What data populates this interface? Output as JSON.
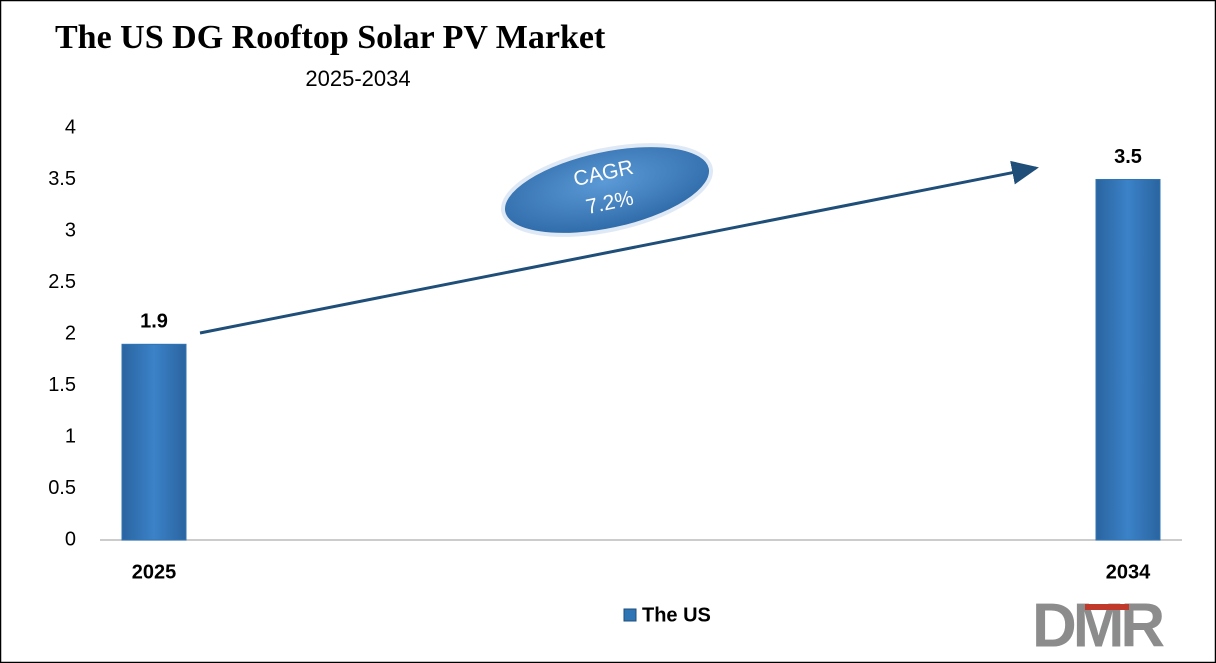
{
  "chart_data": {
    "type": "bar",
    "title": "The US DG Rooftop Solar PV Market",
    "subtitle": "2025-2034",
    "categories": [
      "2025",
      "2034"
    ],
    "series": [
      {
        "name": "The US",
        "color": "#2e75b6",
        "values": [
          1.9,
          3.5
        ]
      }
    ],
    "ylim": [
      0,
      4
    ],
    "yticks": [
      0,
      0.5,
      1,
      1.5,
      2,
      2.5,
      3,
      3.5,
      4
    ],
    "annotations": [
      "CAGR",
      "7.2%"
    ],
    "grid": false
  },
  "logo": "DMR"
}
